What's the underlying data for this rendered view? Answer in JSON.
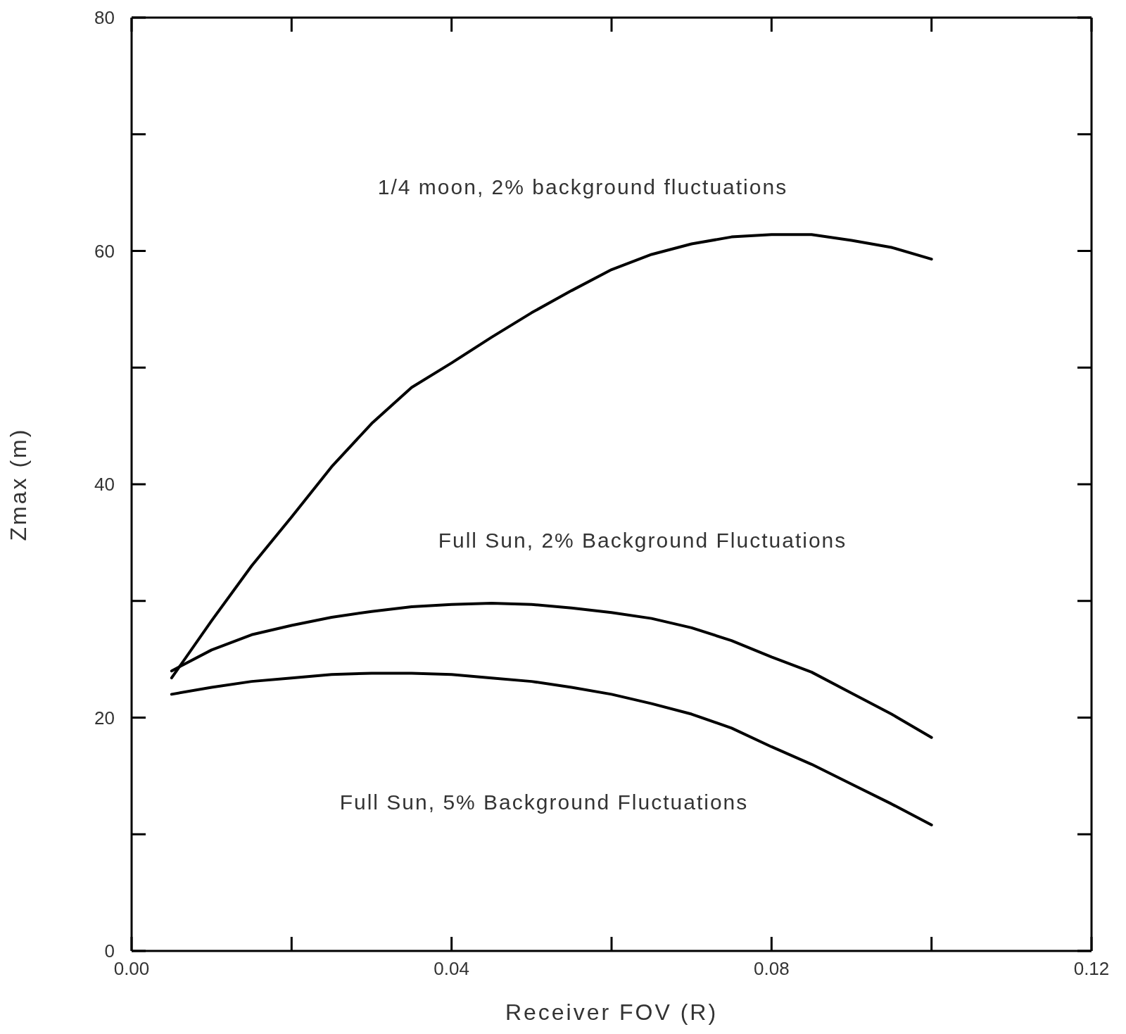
{
  "chart_data": {
    "type": "line",
    "xlabel": "Receiver FOV (R)",
    "ylabel": "Zmax (m)",
    "x": [
      0.005,
      0.01,
      0.015,
      0.02,
      0.025,
      0.03,
      0.035,
      0.04,
      0.045,
      0.05,
      0.055,
      0.06,
      0.065,
      0.07,
      0.075,
      0.08,
      0.085,
      0.09,
      0.095,
      0.1
    ],
    "series": [
      {
        "color": "#000000",
        "values": [
          23.4,
          28.3,
          33,
          37.2,
          41.5,
          45.2,
          48.3,
          50.4,
          52.6,
          54.7,
          56.6,
          58.4,
          59.7,
          60.6,
          61.2,
          61.4,
          61.4,
          60.9,
          60.3,
          59.3
        ]
      },
      {
        "color": "#000000",
        "values": [
          24.0,
          25.8,
          27.1,
          27.9,
          28.6,
          29.1,
          29.5,
          29.7,
          29.8,
          29.7,
          29.4,
          29.0,
          28.5,
          27.7,
          26.6,
          25.2,
          23.9,
          22.1,
          20.3,
          18.3
        ]
      },
      {
        "color": "#000000",
        "values": [
          22.0,
          22.6,
          23.1,
          23.4,
          23.7,
          23.8,
          23.8,
          23.7,
          23.4,
          23.1,
          22.6,
          22.0,
          21.2,
          20.3,
          19.1,
          17.5,
          16.0,
          14.3,
          12.6,
          10.8
        ]
      }
    ],
    "annotations": [
      "1/4 moon, 2% background fluctuations",
      "Full Sun, 2% Background Fluctuations",
      "Full Sun, 5% Background Fluctuations"
    ],
    "xlim": [
      0,
      0.12
    ],
    "xticks": [
      {
        "value": 0,
        "label": "0.00"
      },
      {
        "value": 0.04,
        "label": "0.04"
      },
      {
        "value": 0.08,
        "label": "0.08"
      },
      {
        "value": 0.12,
        "label": "0.12"
      }
    ],
    "ylim": [
      0,
      80
    ],
    "yticks": [
      0,
      20,
      40,
      60,
      80
    ],
    "grid": false,
    "legend": false,
    "marker": "none",
    "line_style": "solid"
  }
}
